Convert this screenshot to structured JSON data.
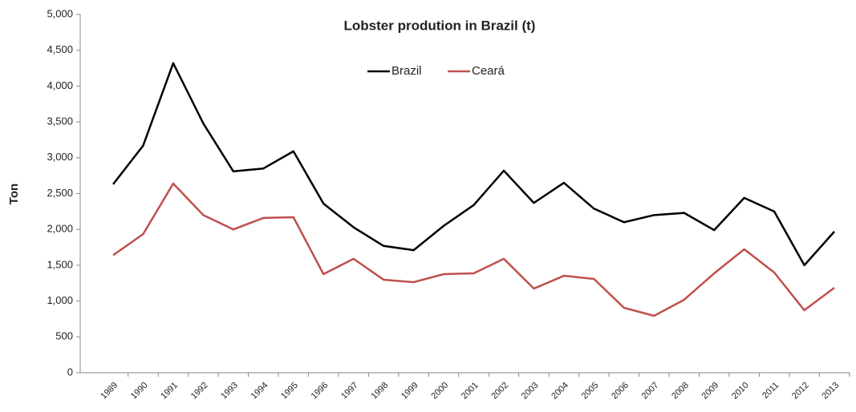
{
  "chart_data": {
    "type": "line",
    "title": "Lobster prodution in Brazil (t)",
    "y_label": "Ton",
    "categories": [
      "1989",
      "1990",
      "1991",
      "1992",
      "1993",
      "1994",
      "1995",
      "1996",
      "1997",
      "1998",
      "1999",
      "2000",
      "2001",
      "2002",
      "2003",
      "2004",
      "2005",
      "2006",
      "2007",
      "2008",
      "2009",
      "2010",
      "2011",
      "2012",
      "2013"
    ],
    "series": [
      {
        "name": "Brazil",
        "color": "#000000",
        "values": [
          2630,
          3170,
          4320,
          3480,
          2810,
          2850,
          3090,
          2360,
          2030,
          1770,
          1710,
          2050,
          2340,
          2820,
          2370,
          2650,
          2290,
          2100,
          2200,
          2230,
          1990,
          2440,
          2250,
          1500,
          1970
        ]
      },
      {
        "name": "Ceará",
        "color": "#c0504d",
        "values": [
          1640,
          1935,
          2640,
          2200,
          2000,
          2160,
          2170,
          1376,
          1590,
          1298,
          1264,
          1376,
          1387,
          1590,
          1174,
          1353,
          1309,
          906,
          794,
          1018,
          1387,
          1723,
          1398,
          872,
          1186
        ]
      }
    ],
    "ylim": [
      0,
      5000
    ],
    "yticks": [
      0,
      500,
      {
        "value": 1000,
        "label": "1,000"
      },
      {
        "value": 1500,
        "label": "1,500"
      },
      {
        "value": 2000,
        "label": "2,000"
      },
      {
        "value": 2500,
        "label": "2,500"
      },
      {
        "value": 3000,
        "label": "3,000"
      },
      {
        "value": 3500,
        "label": "3,500"
      },
      {
        "value": 4000,
        "label": "4,000"
      },
      {
        "value": 4500,
        "label": "4,500"
      },
      {
        "value": 5000,
        "label": "5,000"
      }
    ],
    "legend": "top"
  }
}
